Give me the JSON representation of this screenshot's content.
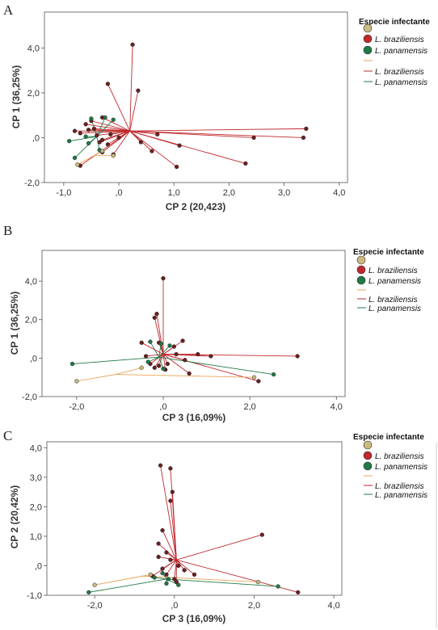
{
  "colors": {
    "braziliensis": "#c0282d",
    "panamensis": "#1f7a45",
    "other": "#e8a35a",
    "other_marker": "#cbb97f",
    "dot_fill_dark": "#6b2020",
    "axis": "#555555"
  },
  "chart_data": [
    {
      "panel": "A",
      "type": "scatter",
      "xlabel": "CP 2 (20,423)",
      "ylabel": "CP 1 (36,25%)",
      "xlim": [
        -1.35,
        4.15
      ],
      "ylim": [
        -2.0,
        5.6
      ],
      "xticks": [
        -1.0,
        0.0,
        1.0,
        2.0,
        3.0,
        4.0
      ],
      "xtick_labels": [
        "-1,0",
        ",0",
        "1,0",
        "2,0",
        "3,0",
        "4,0"
      ],
      "yticks": [
        -2.0,
        0.0,
        2.0,
        4.0
      ],
      "ytick_labels": [
        "-2,0",
        ",0",
        "2,0",
        "4,0"
      ],
      "legend_title": "Especie infectante",
      "legend_entries": [
        "L. braziliensis",
        "L. panamensis",
        "L. braziliensis",
        "L. panamensis"
      ],
      "centroids": {
        "braziliensis": [
          0.2,
          0.3
        ],
        "panamensis": [
          -0.4,
          0.05
        ],
        "other": [
          -0.45,
          -0.8
        ]
      },
      "series": [
        {
          "name": "L. braziliensis",
          "group": "braziliensis",
          "points": [
            [
              0.25,
              4.15
            ],
            [
              -0.2,
              2.4
            ],
            [
              0.35,
              2.1
            ],
            [
              -0.6,
              0.6
            ],
            [
              -0.5,
              0.75
            ],
            [
              -0.3,
              0.9
            ],
            [
              -0.8,
              0.3
            ],
            [
              -0.7,
              0.2
            ],
            [
              -0.55,
              0.35
            ],
            [
              -0.45,
              0.4
            ],
            [
              -0.4,
              0.1
            ],
            [
              -0.3,
              -0.1
            ],
            [
              -0.2,
              -0.3
            ],
            [
              -0.35,
              -0.2
            ],
            [
              -0.15,
              0.15
            ],
            [
              0.0,
              0.0
            ],
            [
              0.4,
              -0.2
            ],
            [
              0.6,
              -0.6
            ],
            [
              0.7,
              0.15
            ],
            [
              1.1,
              -0.35
            ],
            [
              1.05,
              -1.3
            ],
            [
              2.3,
              -1.15
            ],
            [
              2.45,
              0.0
            ],
            [
              3.4,
              0.4
            ],
            [
              3.35,
              0.0
            ],
            [
              -0.7,
              -1.25
            ],
            [
              -0.1,
              -0.75
            ],
            [
              -0.3,
              -0.65
            ]
          ]
        },
        {
          "name": "L. panamensis",
          "group": "panamensis",
          "points": [
            [
              -0.5,
              0.85
            ],
            [
              -0.25,
              0.9
            ],
            [
              -0.1,
              0.8
            ],
            [
              -0.9,
              -0.15
            ],
            [
              -0.8,
              -0.9
            ],
            [
              -0.6,
              0.05
            ],
            [
              -0.55,
              -0.25
            ],
            [
              -0.35,
              -0.55
            ]
          ]
        },
        {
          "name": "",
          "group": "other",
          "points": [
            [
              -0.75,
              -1.2
            ],
            [
              -0.3,
              -0.6
            ],
            [
              -0.1,
              -0.8
            ]
          ]
        }
      ]
    },
    {
      "panel": "B",
      "type": "scatter",
      "xlabel": "CP 3 (16,09%)",
      "ylabel": "CP 1 (36,25%)",
      "xlim": [
        -2.8,
        4.2
      ],
      "ylim": [
        -2.0,
        5.6
      ],
      "xticks": [
        -2.0,
        0.0,
        2.0,
        4.0
      ],
      "xtick_labels": [
        "-2,0",
        ",0",
        "2,0",
        "4,0"
      ],
      "yticks": [
        -2.0,
        0.0,
        2.0,
        4.0
      ],
      "ytick_labels": [
        "-2,0",
        ",0",
        "2,0",
        "4,0"
      ],
      "legend_title": "Especie infectante",
      "legend_entries": [
        "L. braziliensis",
        "L. panamensis",
        "L. braziliensis",
        "L. panamensis"
      ],
      "centroids": {
        "braziliensis": [
          0.0,
          0.2
        ],
        "panamensis": [
          -0.1,
          0.05
        ],
        "other": [
          -1.1,
          -0.85
        ]
      },
      "series": [
        {
          "name": "L. braziliensis",
          "group": "braziliensis",
          "points": [
            [
              0.0,
              4.15
            ],
            [
              -0.15,
              2.3
            ],
            [
              -0.2,
              2.1
            ],
            [
              -0.1,
              0.8
            ],
            [
              0.45,
              0.9
            ],
            [
              0.8,
              0.2
            ],
            [
              1.1,
              0.1
            ],
            [
              3.1,
              0.1
            ],
            [
              0.3,
              0.2
            ],
            [
              0.5,
              -0.1
            ],
            [
              0.1,
              -0.3
            ],
            [
              -0.2,
              -0.5
            ],
            [
              0.05,
              -0.6
            ],
            [
              0.6,
              -0.8
            ],
            [
              -0.3,
              -0.3
            ],
            [
              -0.4,
              0.1
            ],
            [
              -0.1,
              -0.4
            ],
            [
              2.2,
              -1.2
            ],
            [
              0.25,
              0.6
            ],
            [
              -0.5,
              0.8
            ]
          ]
        },
        {
          "name": "L. panamensis",
          "group": "panamensis",
          "points": [
            [
              -2.1,
              -0.3
            ],
            [
              -0.3,
              0.85
            ],
            [
              -0.05,
              0.75
            ],
            [
              0.15,
              0.65
            ],
            [
              2.55,
              -0.85
            ],
            [
              -0.35,
              -0.2
            ],
            [
              0.0,
              -0.55
            ]
          ]
        },
        {
          "name": "",
          "group": "other",
          "points": [
            [
              -2.0,
              -1.2
            ],
            [
              2.1,
              -1.0
            ],
            [
              -0.5,
              -0.5
            ]
          ]
        }
      ]
    },
    {
      "panel": "C",
      "type": "scatter",
      "xlabel": "CP 3 (16,09%)",
      "ylabel": "CP 2 (20,42%)",
      "xlim": [
        -3.2,
        4.2
      ],
      "ylim": [
        -1.0,
        4.2
      ],
      "xticks": [
        -2.0,
        0.0,
        2.0,
        4.0
      ],
      "xtick_labels": [
        "-2,0",
        ",0",
        "2,0",
        "4,0"
      ],
      "yticks": [
        -1.0,
        0.0,
        1.0,
        2.0,
        3.0,
        4.0
      ],
      "ytick_labels": [
        "-1,0",
        ",0",
        "1,0",
        "2,0",
        "3,0",
        "4,0"
      ],
      "legend_title": "Especie infectante",
      "legend_entries": [
        "L. braziliensis",
        "L. panamensis",
        "L. braziliensis",
        "L. panamensis"
      ],
      "centroids": {
        "braziliensis": [
          0.05,
          0.2
        ],
        "panamensis": [
          -0.2,
          -0.45
        ],
        "other": [
          -0.8,
          -0.35
        ]
      },
      "series": [
        {
          "name": "L. braziliensis",
          "group": "braziliensis",
          "points": [
            [
              -0.35,
              3.4
            ],
            [
              -0.1,
              3.3
            ],
            [
              -0.05,
              2.5
            ],
            [
              -0.1,
              2.2
            ],
            [
              -0.3,
              1.2
            ],
            [
              -0.4,
              0.75
            ],
            [
              -0.2,
              0.45
            ],
            [
              2.2,
              1.05
            ],
            [
              -0.4,
              0.3
            ],
            [
              -0.1,
              0.2
            ],
            [
              0.1,
              0.0
            ],
            [
              0.25,
              -0.15
            ],
            [
              0.5,
              -0.3
            ],
            [
              -0.3,
              -0.1
            ],
            [
              3.1,
              -0.9
            ],
            [
              0.05,
              -0.55
            ],
            [
              -0.2,
              -0.3
            ],
            [
              -0.55,
              -0.35
            ],
            [
              0.0,
              -0.45
            ]
          ]
        },
        {
          "name": "L. panamensis",
          "group": "panamensis",
          "points": [
            [
              -2.15,
              -0.9
            ],
            [
              -0.5,
              -0.4
            ],
            [
              -0.3,
              -0.25
            ],
            [
              -0.2,
              -0.6
            ],
            [
              2.6,
              -0.7
            ],
            [
              -0.15,
              -0.45
            ],
            [
              0.1,
              -0.65
            ]
          ]
        },
        {
          "name": "",
          "group": "other",
          "points": [
            [
              -2.0,
              -0.65
            ],
            [
              2.1,
              -0.55
            ],
            [
              -0.6,
              -0.3
            ]
          ]
        }
      ]
    }
  ]
}
